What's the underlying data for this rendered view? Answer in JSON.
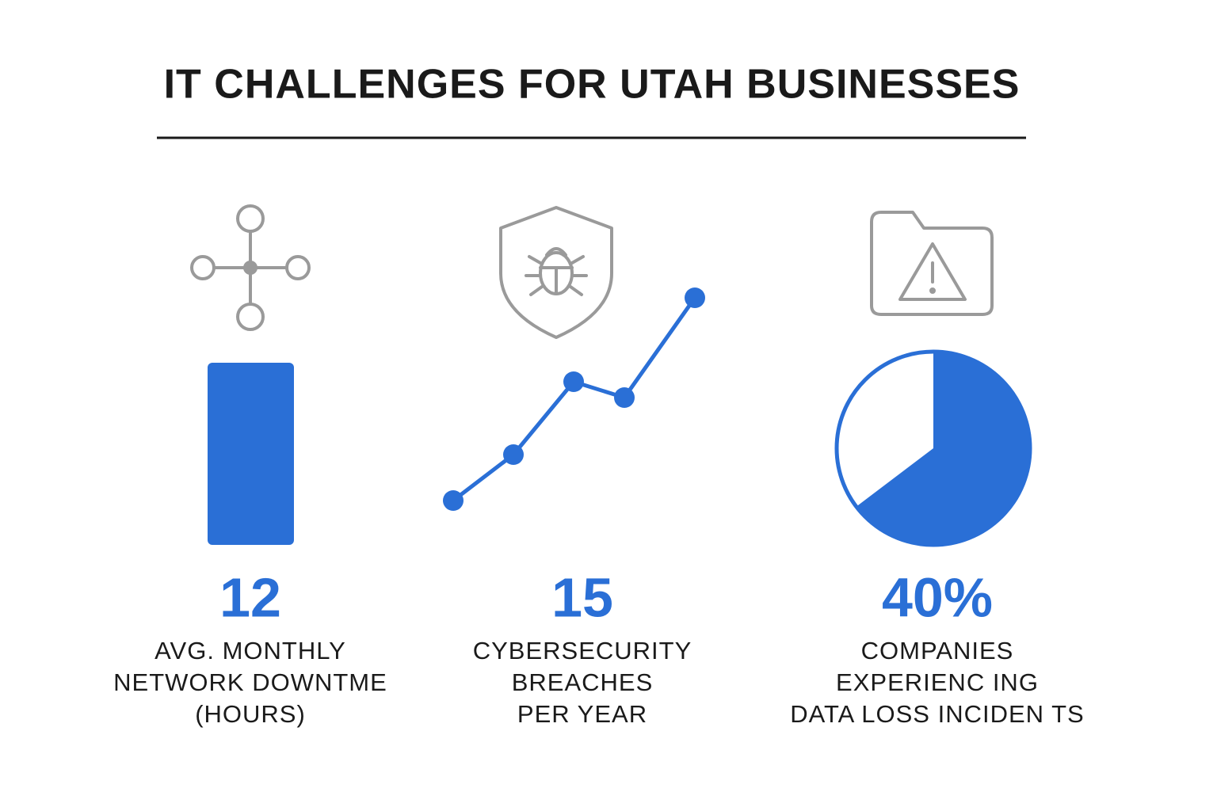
{
  "header": {
    "title": "IT CHALLENGES FOR UTAH BUSINESSES"
  },
  "stats": [
    {
      "value": "12",
      "label_lines": [
        "AVG. MONTHLY",
        "NETWORK DOWNTME",
        "(HOURS)"
      ]
    },
    {
      "value": "15",
      "label_lines": [
        "CYBERSECURITY",
        "BREACHES",
        "PER YEAR"
      ]
    },
    {
      "value": "40%",
      "label_lines": [
        "COMPANIES",
        "EXPERIENC ING",
        "DATA LOSS INCIDEN TS"
      ]
    }
  ]
}
